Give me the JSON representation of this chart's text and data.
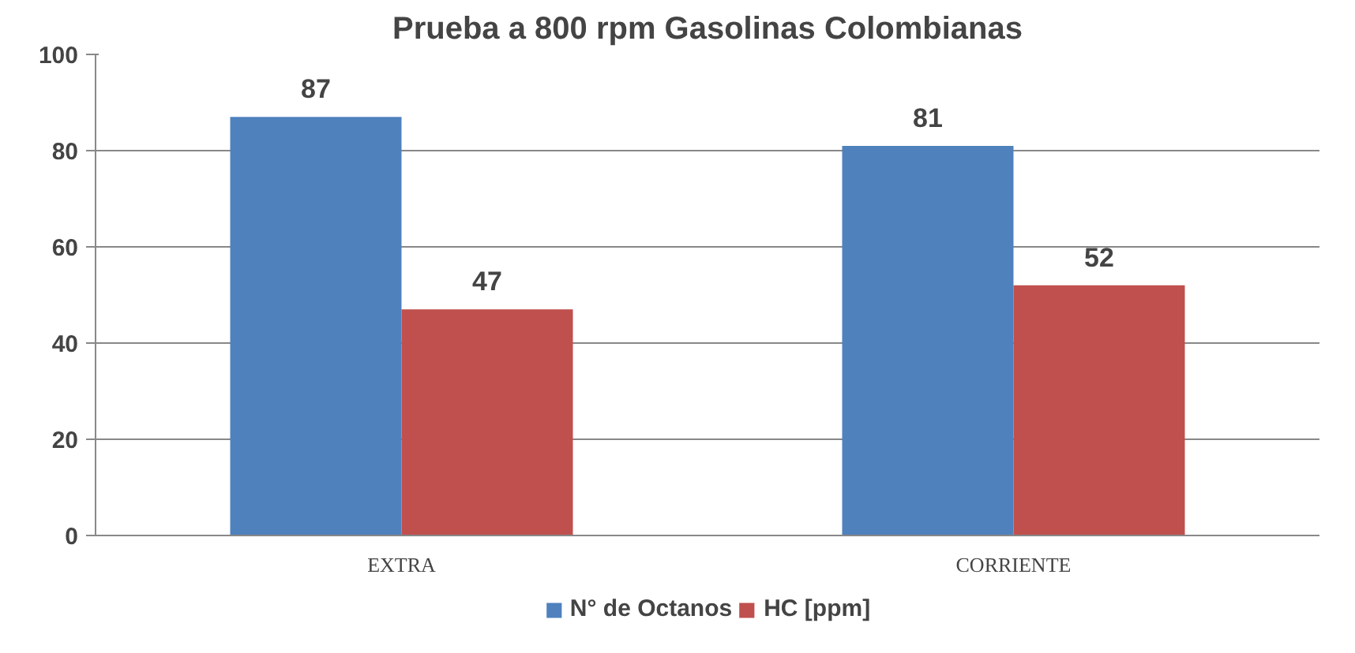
{
  "chart_data": {
    "type": "bar",
    "title": "Prueba a 800 rpm Gasolinas Colombianas",
    "categories": [
      "EXTRA",
      "CORRIENTE"
    ],
    "series": [
      {
        "name": "N° de Octanos",
        "color": "#4f81bd",
        "values": [
          87,
          81
        ]
      },
      {
        "name": "HC [ppm]",
        "color": "#c0504d",
        "values": [
          47,
          52
        ]
      }
    ],
    "ylim": [
      0,
      100
    ],
    "yticks": [
      0,
      20,
      40,
      60,
      80,
      100
    ],
    "grid": "y",
    "legend": "bottom",
    "data_labels": true
  }
}
